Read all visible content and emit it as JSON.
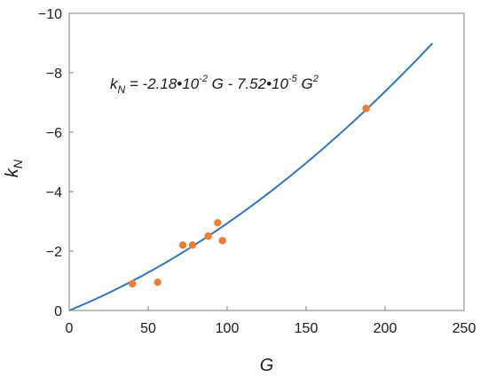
{
  "chart_data": {
    "type": "scatter",
    "xlabel": "G",
    "ylabel": "k",
    "ylabel_subscript": "N",
    "xlim": [
      0,
      250
    ],
    "ylim": [
      0,
      -10
    ],
    "x_ticks": [
      0,
      50,
      100,
      150,
      200,
      250
    ],
    "y_ticks": [
      0,
      -2,
      -4,
      -6,
      -8,
      -10
    ],
    "x_tick_labels": [
      "0",
      "50",
      "100",
      "150",
      "200",
      "250"
    ],
    "y_tick_labels": [
      "0",
      "−2",
      "−4",
      "−6",
      "−8",
      "−10"
    ],
    "grid": false,
    "legend": "none",
    "series": [
      {
        "kind": "points",
        "color": "#ED7D31",
        "x": [
          40,
          56,
          72,
          78,
          88,
          94,
          97,
          188
        ],
        "y": [
          -0.9,
          -0.95,
          -2.2,
          -2.2,
          -2.5,
          -2.95,
          -2.35,
          -6.8
        ]
      },
      {
        "kind": "fit-curve",
        "color": "#2E75C2",
        "a": -0.0218,
        "b": -7.52e-05,
        "x_range": [
          0,
          230
        ]
      }
    ],
    "annotation": {
      "k": "k",
      "sub": "N",
      "rest1": " = -2.18•10",
      "sup1": "-2",
      "rest2": " G - 7.52•10",
      "sup2": "-5",
      "rest3": " G",
      "sup3": "2"
    }
  }
}
